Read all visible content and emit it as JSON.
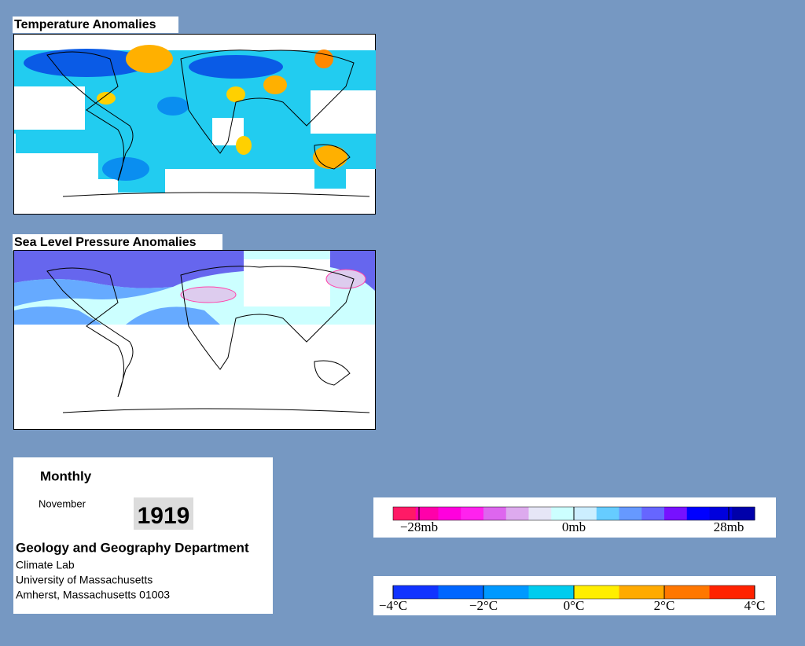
{
  "panels": [
    {
      "title": "Temperature Anomalies"
    },
    {
      "title": "Sea Level Pressure Anomalies"
    }
  ],
  "info": {
    "period": "Monthly",
    "month": "November",
    "year": "1919",
    "department": "Geology and Geography Department",
    "lines": [
      "Climate Lab",
      "University of Massachusetts",
      "Amherst, Massachusetts 01003"
    ]
  },
  "legends": [
    {
      "labels": [
        "−28mb",
        "0mb",
        "28mb"
      ],
      "colors": [
        "#ff1a66",
        "#ff00aa",
        "#ff00dd",
        "#ff22ee",
        "#dd66ee",
        "#ddaaee",
        "#e6e6f6",
        "#ccffff",
        "#cceeff",
        "#66ccff",
        "#6699ff",
        "#6666ff",
        "#7711ff",
        "#0000ff",
        "#0000dd",
        "#0000aa"
      ]
    },
    {
      "labels": [
        "−4°C",
        "−2°C",
        "0°C",
        "2°C",
        "4°C"
      ],
      "colors": [
        "#1133ff",
        "#0066ff",
        "#0099ff",
        "#00ccee",
        "#ffee00",
        "#ffaa00",
        "#ff7700",
        "#ff2200"
      ]
    }
  ]
}
